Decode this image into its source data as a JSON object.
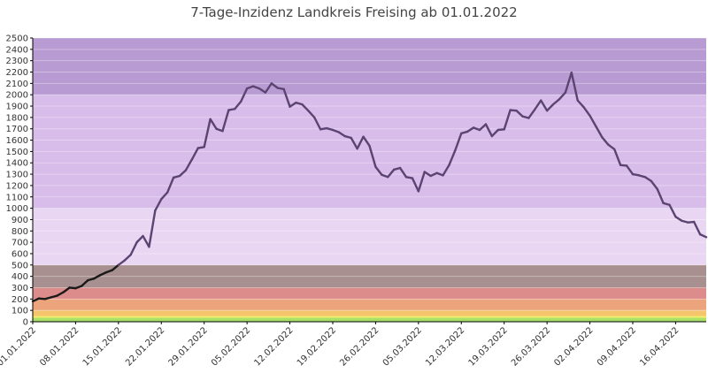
{
  "chart_data": {
    "type": "line",
    "title": "7-Tage-Inzidenz Landkreis Freising ab 01.01.2022",
    "xlabel": "",
    "ylabel": "",
    "ylim": [
      0,
      2500
    ],
    "ytick_step": 100,
    "grid": true,
    "legend": "none",
    "xtick_labels": [
      "01.01.2022",
      "08.01.2022",
      "15.01.2022",
      "22.01.2022",
      "29.01.2022",
      "05.02.2022",
      "12.02.2022",
      "19.02.2022",
      "26.02.2022",
      "05.03.2022",
      "12.03.2022",
      "19.03.2022",
      "26.03.2022",
      "02.04.2022",
      "09.04.2022",
      "16.04.2022"
    ],
    "x_start": "01.01.2022",
    "x_end": "21.04.2022",
    "bands": [
      {
        "from": 0,
        "to": 35,
        "color": "#a8e06a"
      },
      {
        "from": 35,
        "to": 50,
        "color": "#f3ee6a"
      },
      {
        "from": 50,
        "to": 100,
        "color": "#f4c56a"
      },
      {
        "from": 100,
        "to": 200,
        "color": "#eba47c"
      },
      {
        "from": 200,
        "to": 300,
        "color": "#dd8c8c"
      },
      {
        "from": 300,
        "to": 500,
        "color": "#a89090"
      },
      {
        "from": 500,
        "to": 1000,
        "color": "#e8d6f2"
      },
      {
        "from": 1000,
        "to": 2000,
        "color": "#d8bcea"
      },
      {
        "from": 2000,
        "to": 2500,
        "color": "#b79bd2"
      }
    ],
    "colors": {
      "line_low": "#1a1a1a",
      "line_high": "#5b4472"
    },
    "series": [
      {
        "name": "",
        "x": [
          "01.01.2022",
          "02.01.2022",
          "03.01.2022",
          "04.01.2022",
          "05.01.2022",
          "06.01.2022",
          "07.01.2022",
          "08.01.2022",
          "09.01.2022",
          "10.01.2022",
          "11.01.2022",
          "12.01.2022",
          "13.01.2022",
          "14.01.2022",
          "15.01.2022",
          "16.01.2022",
          "17.01.2022",
          "18.01.2022",
          "19.01.2022",
          "20.01.2022",
          "21.01.2022",
          "22.01.2022",
          "23.01.2022",
          "24.01.2022",
          "25.01.2022",
          "26.01.2022",
          "27.01.2022",
          "28.01.2022",
          "29.01.2022",
          "30.01.2022",
          "31.01.2022",
          "01.02.2022",
          "02.02.2022",
          "03.02.2022",
          "04.02.2022",
          "05.02.2022",
          "06.02.2022",
          "07.02.2022",
          "08.02.2022",
          "09.02.2022",
          "10.02.2022",
          "11.02.2022",
          "12.02.2022",
          "13.02.2022",
          "14.02.2022",
          "15.02.2022",
          "16.02.2022",
          "17.02.2022",
          "18.02.2022",
          "19.02.2022",
          "20.02.2022",
          "21.02.2022",
          "22.02.2022",
          "23.02.2022",
          "24.02.2022",
          "25.02.2022",
          "26.02.2022",
          "27.02.2022",
          "28.02.2022",
          "01.03.2022",
          "02.03.2022",
          "03.03.2022",
          "04.03.2022",
          "05.03.2022",
          "06.03.2022",
          "07.03.2022",
          "08.03.2022",
          "09.03.2022",
          "10.03.2022",
          "11.03.2022",
          "12.03.2022",
          "13.03.2022",
          "14.03.2022",
          "15.03.2022",
          "16.03.2022",
          "17.03.2022",
          "18.03.2022",
          "19.03.2022",
          "20.03.2022",
          "21.03.2022",
          "22.03.2022",
          "23.03.2022",
          "24.03.2022",
          "25.03.2022",
          "26.03.2022",
          "27.03.2022",
          "28.03.2022",
          "29.03.2022",
          "30.03.2022",
          "31.03.2022",
          "01.04.2022",
          "02.04.2022",
          "03.04.2022",
          "04.04.2022",
          "05.04.2022",
          "06.04.2022",
          "07.04.2022",
          "08.04.2022",
          "09.04.2022",
          "10.04.2022",
          "11.04.2022",
          "12.04.2022",
          "13.04.2022",
          "14.04.2022",
          "15.04.2022",
          "16.04.2022",
          "17.04.2022",
          "18.04.2022",
          "19.04.2022",
          "20.04.2022",
          "21.04.2022"
        ],
        "values": [
          180,
          205,
          200,
          215,
          230,
          260,
          300,
          295,
          315,
          365,
          380,
          410,
          435,
          455,
          500,
          540,
          590,
          700,
          755,
          660,
          980,
          1080,
          1140,
          1270,
          1285,
          1335,
          1430,
          1530,
          1540,
          1785,
          1700,
          1680,
          1865,
          1875,
          1940,
          2055,
          2075,
          2055,
          2020,
          2100,
          2060,
          2050,
          1895,
          1930,
          1915,
          1860,
          1800,
          1695,
          1705,
          1690,
          1670,
          1635,
          1620,
          1525,
          1630,
          1550,
          1365,
          1295,
          1275,
          1340,
          1355,
          1275,
          1265,
          1150,
          1320,
          1285,
          1310,
          1290,
          1380,
          1510,
          1660,
          1675,
          1710,
          1690,
          1740,
          1635,
          1690,
          1695,
          1865,
          1860,
          1810,
          1795,
          1870,
          1950,
          1860,
          1915,
          1960,
          2020,
          2195,
          1950,
          1890,
          1815,
          1720,
          1625,
          1560,
          1520,
          1380,
          1375,
          1300,
          1290,
          1275,
          1240,
          1170,
          1045,
          1030,
          925,
          890,
          875,
          880,
          770,
          745
        ]
      }
    ]
  }
}
